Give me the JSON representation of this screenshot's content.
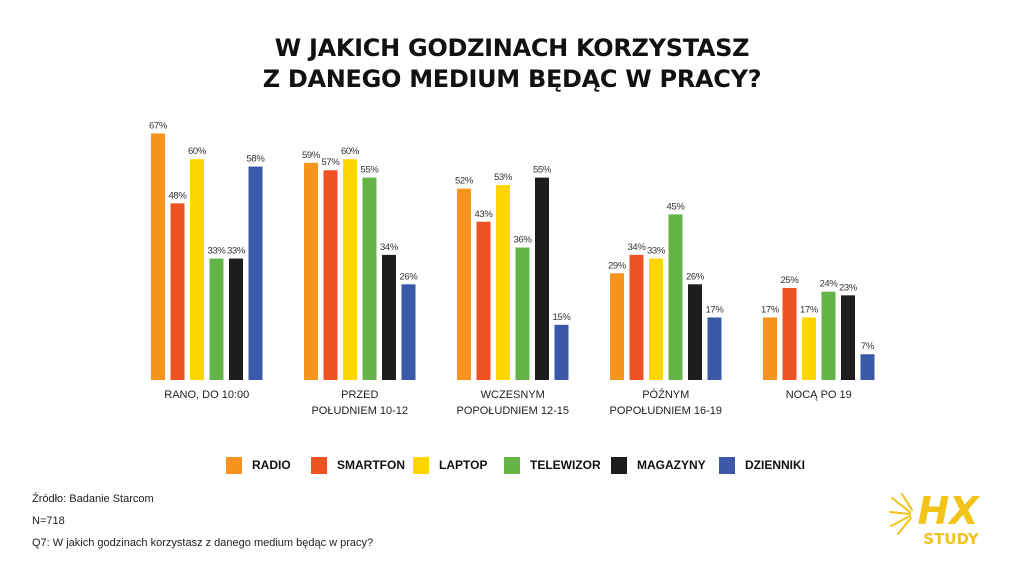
{
  "title": {
    "line1": "W JAKICH GODZINACH KORZYSTASZ",
    "line2": "Z DANEGO MEDIUM BĘDĄC W PRACY?"
  },
  "colors": {
    "radio": "#f7941d",
    "smartfon": "#f05323",
    "laptop": "#ffd500",
    "telewizor": "#64b447",
    "magazyny": "#1d1d1b",
    "dzienniki": "#3a5aa8",
    "logo": "#f2c318"
  },
  "chart_data": {
    "type": "bar",
    "title": "W JAKICH GODZINACH KORZYSTASZ Z DANEGO MEDIUM BĘDĄC W PRACY?",
    "xlabel": "",
    "ylabel": "",
    "unit": "%",
    "ylim": [
      0,
      70
    ],
    "grid": false,
    "legend_position": "bottom",
    "categories": [
      [
        "RANO, DO 10:00"
      ],
      [
        "PRZED",
        "POŁUDNIEM 10-12"
      ],
      [
        "WCZESNYM",
        "POPOŁUDNIEM 12-15"
      ],
      [
        "PÓŹNYM",
        "POPOŁUDNIEM 16-19"
      ],
      [
        "NOCĄ PO 19"
      ]
    ],
    "series": [
      {
        "name": "RADIO",
        "key": "radio",
        "values": [
          67,
          59,
          52,
          29,
          17
        ]
      },
      {
        "name": "SMARTFON",
        "key": "smartfon",
        "values": [
          48,
          57,
          43,
          34,
          25
        ]
      },
      {
        "name": "LAPTOP",
        "key": "laptop",
        "values": [
          60,
          60,
          53,
          33,
          17
        ]
      },
      {
        "name": "TELEWIZOR",
        "key": "telewizor",
        "values": [
          33,
          55,
          36,
          45,
          24
        ]
      },
      {
        "name": "MAGAZYNY",
        "key": "magazyny",
        "values": [
          33,
          34,
          55,
          26,
          23
        ]
      },
      {
        "name": "DZIENNIKI",
        "key": "dzienniki",
        "values": [
          58,
          26,
          15,
          17,
          7
        ]
      }
    ]
  },
  "footer": {
    "source": "Źródło: Badanie Starcom",
    "sample": "N=718",
    "question": "Q7: W jakich godzinach korzystasz z danego medium będąc w pracy?"
  },
  "logo": {
    "main": "HX",
    "sub": "STUDY"
  }
}
